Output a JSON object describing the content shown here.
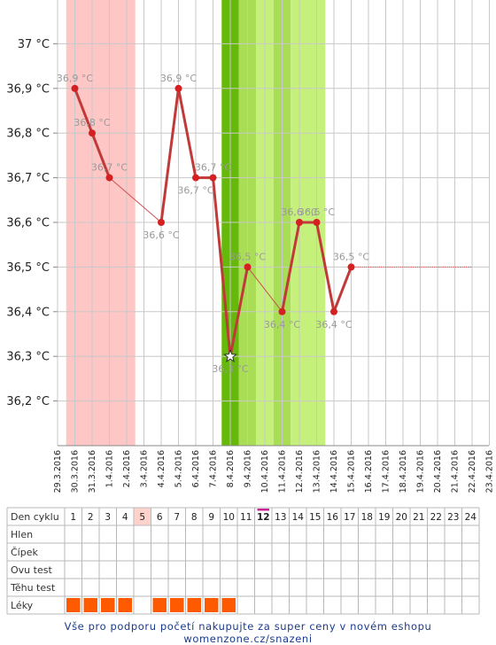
{
  "chart_data": {
    "type": "line",
    "y_unit": "°C",
    "ylim": [
      36.1,
      37.1
    ],
    "y_ticks": [
      "36,2 °C",
      "36,3 °C",
      "36,4 °C",
      "36,5 °C",
      "36,6 °C",
      "36,7 °C",
      "36,8 °C",
      "36,9 °C",
      "37 °C"
    ],
    "y_tick_values": [
      36.2,
      36.3,
      36.4,
      36.5,
      36.6,
      36.7,
      36.8,
      36.9,
      37.0
    ],
    "x_ticks": [
      "29.3.2016",
      "30.3.2016",
      "31.3.2016",
      "1.4.2016",
      "2.4.2016",
      "3.4.2016",
      "4.4.2016",
      "5.4.2016",
      "6.4.2016",
      "7.4.2016",
      "8.4.2016",
      "9.4.2016",
      "10.4.2016",
      "11.4.2016",
      "12.4.2016",
      "13.4.2016",
      "14.4.2016",
      "15.4.2016",
      "16.4.2016",
      "17.4.2016",
      "18.4.2016",
      "19.4.2016",
      "20.4.2016",
      "21.4.2016",
      "22.4.2016",
      "23.4.2016"
    ],
    "grid": true,
    "series": [
      {
        "color": "#c03a3a",
        "points": [
          {
            "day": 1,
            "date": "30.3.2016",
            "value": 36.9,
            "label": "36,9 °C"
          },
          {
            "day": 2,
            "date": "31.3.2016",
            "value": 36.8,
            "label": "36,8 °C"
          },
          {
            "day": 3,
            "date": "1.4.2016",
            "value": 36.7,
            "label": "36,7 °C"
          },
          {
            "day": 6,
            "date": "4.4.2016",
            "value": 36.6,
            "label": "36,6 °C"
          },
          {
            "day": 7,
            "date": "5.4.2016",
            "value": 36.9,
            "label": "36,9 °C"
          },
          {
            "day": 8,
            "date": "6.4.2016",
            "value": 36.7,
            "label": "36,7 °C"
          },
          {
            "day": 9,
            "date": "7.4.2016",
            "value": 36.7,
            "label": "36,7 °C"
          },
          {
            "day": 10,
            "date": "8.4.2016",
            "value": 36.3,
            "label": "36,3 °C",
            "marker": "star"
          },
          {
            "day": 11,
            "date": "9.4.2016",
            "value": 36.5,
            "label": "36,5 °C"
          },
          {
            "day": 13,
            "date": "11.4.2016",
            "value": 36.4,
            "label": "36,4 °C"
          },
          {
            "day": 14,
            "date": "12.4.2016",
            "value": 36.6,
            "label": "36,6 °C"
          },
          {
            "day": 15,
            "date": "13.4.2016",
            "value": 36.6,
            "label": "36,6 °C"
          },
          {
            "day": 16,
            "date": "14.4.2016",
            "value": 36.4,
            "label": "36,4 °C"
          },
          {
            "day": 17,
            "date": "15.4.2016",
            "value": 36.5,
            "label": "36,5 °C"
          }
        ]
      }
    ],
    "projection": {
      "from_day": 17,
      "to_day": 24,
      "value": 36.5,
      "style": "dotted"
    },
    "bands": [
      {
        "from_day": 1,
        "to_day": 4,
        "color": "#ffc6c6",
        "meaning": "menstruation"
      },
      {
        "from_day": 10,
        "to_day": 10,
        "color": "#66b80a",
        "meaning": "ovulation"
      },
      {
        "from_day": 11,
        "to_day": 11,
        "color": "#a8dd55"
      },
      {
        "from_day": 12,
        "to_day": 12,
        "color": "#c6f07c"
      },
      {
        "from_day": 13,
        "to_day": 13,
        "color": "#a8dd55"
      },
      {
        "from_day": 14,
        "to_day": 15,
        "color": "#c6f07c"
      }
    ]
  },
  "table": {
    "row_labels": [
      "Den cyklu",
      "Hlen",
      "Čípek",
      "Ovu test",
      "Těhu test",
      "Léky"
    ],
    "days": [
      "1",
      "2",
      "3",
      "4",
      "5",
      "6",
      "7",
      "8",
      "9",
      "10",
      "11",
      "12",
      "13",
      "14",
      "15",
      "16",
      "17",
      "18",
      "19",
      "20",
      "21",
      "22",
      "23",
      "24"
    ],
    "current_day": "12",
    "highlight_day": "5",
    "leky_days": [
      1,
      2,
      3,
      4,
      6,
      7,
      8,
      9,
      10
    ],
    "leky_color": "#ff5a00",
    "current_marker_color": "#cc2299"
  },
  "footer": "Vše pro podporu početí nakupujte za super ceny v novém eshopu womenzone.cz/snazeni"
}
